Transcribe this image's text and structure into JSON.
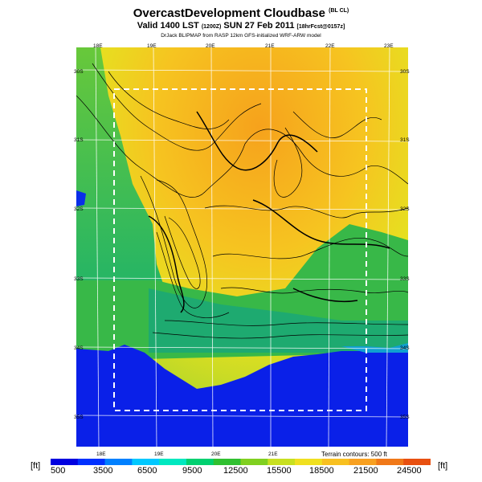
{
  "header": {
    "title": "OvercastDevelopment Cloudbase",
    "title_suffix": "(BL CL)",
    "valid_main": "Valid 1400 LST",
    "valid_utc": "(1200Z)",
    "valid_date": "SUN 27 Feb 2011",
    "valid_ref": "[18hrFcst@0157z]",
    "credits": "DrJack BLIPMAP from RASP 12km GFS-initialized WRF-ARW model"
  },
  "map": {
    "lon_labels_top": [
      "18E",
      "19E",
      "20E",
      "21E",
      "22E",
      "23E"
    ],
    "lon_labels_bottom": [
      "18E",
      "19E",
      "20E",
      "21E"
    ],
    "lat_labels_left": [
      "30S",
      "31S",
      "32S",
      "33S",
      "34S",
      "35S"
    ],
    "lat_labels_right": [
      "30S",
      "31S",
      "32S",
      "33S",
      "34S",
      "35S"
    ],
    "terrain_note": "Terrain contours: 500 ft",
    "colors": {
      "ocean": "#0a1ee8",
      "coast": "#1fb455",
      "inland": "#f4a21a",
      "contour": "#000000",
      "grid": "#ffffff"
    }
  },
  "colorbar": {
    "unit_left": "[ft]",
    "unit_right": "[ft]",
    "labels": [
      "500",
      "3500",
      "6500",
      "9500",
      "12500",
      "15500",
      "18500",
      "21500",
      "24500"
    ],
    "colors": [
      "#0000e0",
      "#0030ff",
      "#0080ff",
      "#00c8ff",
      "#00e8c0",
      "#00d070",
      "#30c030",
      "#80d020",
      "#c8e020",
      "#f0e020",
      "#f8c020",
      "#f8a020",
      "#f07818",
      "#e85010"
    ]
  }
}
